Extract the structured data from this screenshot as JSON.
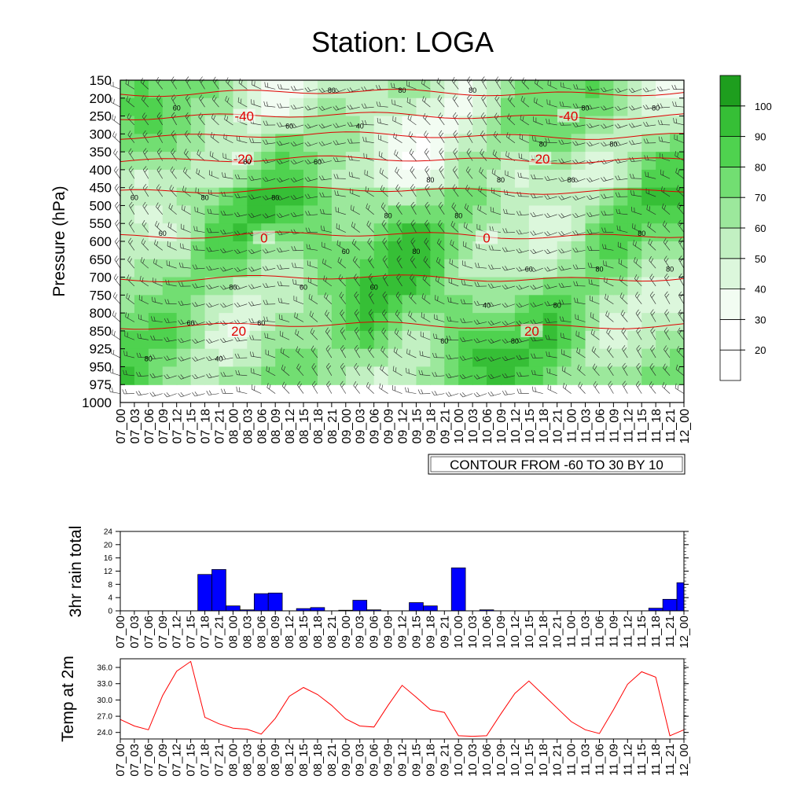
{
  "page": {
    "title": "Station: LOGA"
  },
  "chart_data": [
    {
      "type": "heatmap",
      "title": "Station: LOGA",
      "ylabel": "Pressure (hPa)",
      "xlabel": "",
      "y_ticks": [
        "150",
        "200",
        "250",
        "300",
        "350",
        "400",
        "450",
        "500",
        "550",
        "600",
        "650",
        "700",
        "750",
        "800",
        "850",
        "925",
        "950",
        "975",
        "1000"
      ],
      "x_ticks": [
        "07_00",
        "07_03",
        "07_06",
        "07_09",
        "07_12",
        "07_15",
        "07_18",
        "07_21",
        "08_00",
        "08_03",
        "08_06",
        "08_09",
        "08_12",
        "08_15",
        "08_18",
        "08_21",
        "09_00",
        "09_03",
        "09_06",
        "09_09",
        "09_12",
        "09_15",
        "09_18",
        "09_21",
        "10_00",
        "10_03",
        "10_06",
        "10_09",
        "10_12",
        "10_15",
        "10_18",
        "10_21",
        "11_00",
        "11_03",
        "11_06",
        "11_09",
        "11_12",
        "11_15",
        "11_18",
        "11_21",
        "12_00"
      ],
      "colorbar_labels": [
        "20",
        "30",
        "40",
        "50",
        "60",
        "70",
        "80",
        "90",
        "100"
      ],
      "colorbar_colors": [
        "#ffffff",
        "#ffffff",
        "#f2fcf2",
        "#dcf7dc",
        "#c2f0c2",
        "#9ce89c",
        "#72de72",
        "#4fd24f",
        "#36bf36",
        "#1e9e1e"
      ],
      "contour_info": "CONTOUR FROM -60 TO 30 BY 10",
      "temperature_contour_labels": [
        {
          "value": "-40",
          "level_hpa": 250,
          "time_index": 8.8
        },
        {
          "value": "-40",
          "level_hpa": 250,
          "time_index": 31.8
        },
        {
          "value": "-20",
          "level_hpa": 370,
          "time_index": 8.7
        },
        {
          "value": "-20",
          "level_hpa": 370,
          "time_index": 29.8
        },
        {
          "value": "0",
          "level_hpa": 590,
          "time_index": 10.2
        },
        {
          "value": "0",
          "level_hpa": 590,
          "time_index": 26.0
        },
        {
          "value": "20",
          "level_hpa": 850,
          "time_index": 8.4
        },
        {
          "value": "20",
          "level_hpa": 850,
          "time_index": 29.2
        }
      ],
      "humidity_contour_labels": [
        "60",
        "80",
        "60",
        "80",
        "80",
        "80",
        "40",
        "60",
        "80",
        "80",
        "80",
        "60",
        "60",
        "40",
        "80",
        "80",
        "80",
        "80",
        "60",
        "80",
        "80",
        "80",
        "80",
        "60",
        "60",
        "60",
        "80",
        "80",
        "60",
        "60",
        "80",
        "40",
        "80",
        "60",
        "80",
        "80",
        "80",
        "60"
      ]
    },
    {
      "type": "bar",
      "ylabel": "3hr rain total",
      "ylim": [
        0,
        24
      ],
      "y_ticks": [
        "0",
        "4",
        "8",
        "12",
        "16",
        "20",
        "24"
      ],
      "categories": [
        "07_00",
        "07_03",
        "07_06",
        "07_09",
        "07_12",
        "07_15",
        "07_18",
        "07_21",
        "08_00",
        "08_03",
        "08_06",
        "08_09",
        "08_12",
        "08_15",
        "08_18",
        "08_21",
        "09_00",
        "09_03",
        "09_06",
        "09_09",
        "09_12",
        "09_15",
        "09_18",
        "09_21",
        "10_00",
        "10_03",
        "10_06",
        "10_09",
        "10_12",
        "10_15",
        "10_18",
        "10_21",
        "11_00",
        "11_03",
        "11_06",
        "11_09",
        "11_12",
        "11_15",
        "11_18",
        "11_21",
        "12_00"
      ],
      "values": [
        0,
        0,
        0,
        0,
        0,
        0,
        11,
        12.5,
        1.5,
        0.3,
        5.2,
        5.4,
        0,
        0.7,
        1,
        0,
        0.2,
        3.2,
        0.3,
        0,
        0,
        2.5,
        1.5,
        0,
        13,
        0,
        0.3,
        0,
        0,
        0,
        0,
        0,
        0,
        0,
        0,
        0,
        0,
        0,
        0.8,
        3.5,
        8.5
      ],
      "color": "#0000ff"
    },
    {
      "type": "line",
      "ylabel": "Temp at 2m",
      "ylim": [
        22.8,
        37.6
      ],
      "y_ticks": [
        "24.0",
        "27.0",
        "30.0",
        "33.0",
        "36.0"
      ],
      "categories": [
        "07_00",
        "07_03",
        "07_06",
        "07_09",
        "07_12",
        "07_15",
        "07_18",
        "07_21",
        "08_00",
        "08_03",
        "08_06",
        "08_09",
        "08_12",
        "08_15",
        "08_18",
        "08_21",
        "09_00",
        "09_03",
        "09_06",
        "09_09",
        "09_12",
        "09_15",
        "09_18",
        "09_21",
        "10_00",
        "10_03",
        "10_06",
        "10_09",
        "10_12",
        "10_15",
        "10_18",
        "10_21",
        "11_00",
        "11_03",
        "11_06",
        "11_09",
        "11_12",
        "11_15",
        "11_18",
        "11_21",
        "12_00"
      ],
      "values": [
        26.4,
        25.2,
        24.5,
        30.8,
        35.3,
        37.1,
        26.8,
        25.6,
        24.8,
        24.6,
        23.7,
        26.6,
        30.7,
        32.3,
        31.0,
        29.0,
        26.5,
        25.2,
        25.0,
        29.0,
        32.7,
        30.5,
        28.2,
        27.7,
        23.4,
        23.3,
        23.4,
        27.4,
        31.2,
        33.5,
        31.0,
        28.5,
        26.0,
        24.5,
        23.8,
        28.2,
        32.9,
        35.2,
        34.2,
        23.4,
        24.5
      ],
      "color": "#ff0000"
    }
  ]
}
